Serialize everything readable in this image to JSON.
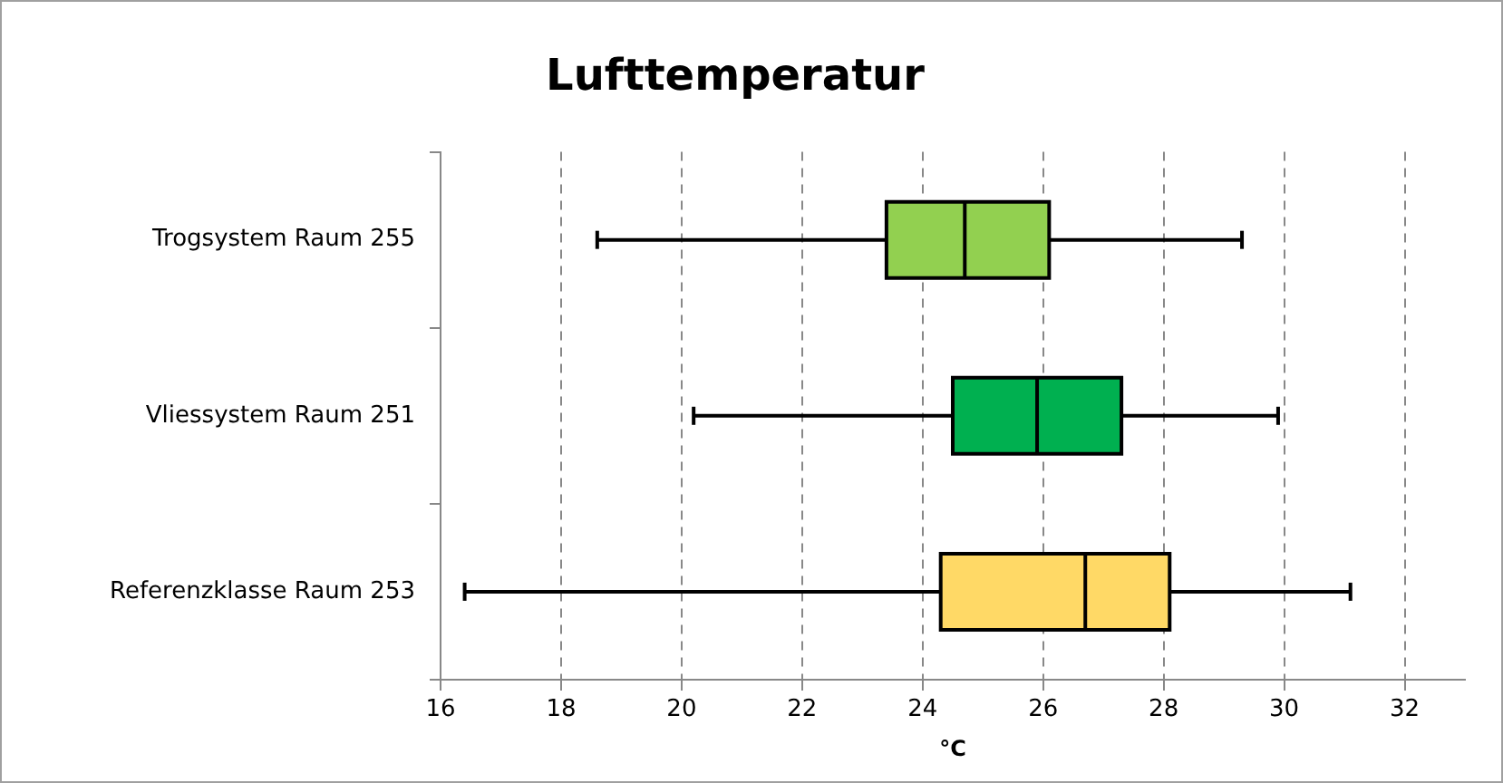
{
  "chart_data": {
    "type": "box",
    "orientation": "horizontal",
    "title": "Lufttemperatur",
    "xlabel": "°C",
    "categories": [
      "Trogsystem Raum 255",
      "Vliessystem Raum 251",
      "Referenzklasse Raum 253"
    ],
    "colors": [
      "#92d050",
      "#00b050",
      "#ffd966"
    ],
    "boxes": [
      {
        "low": 18.6,
        "q1": 23.4,
        "median": 24.7,
        "q3": 26.1,
        "high": 29.3
      },
      {
        "low": 20.2,
        "q1": 24.5,
        "median": 25.9,
        "q3": 27.3,
        "high": 29.9
      },
      {
        "low": 16.4,
        "q1": 24.3,
        "median": 26.7,
        "q3": 28.1,
        "high": 31.1
      }
    ],
    "xlim": [
      16,
      33
    ],
    "xticks": [
      16,
      18,
      20,
      22,
      24,
      26,
      28,
      30,
      32
    ],
    "grid": "x",
    "legend": false
  }
}
